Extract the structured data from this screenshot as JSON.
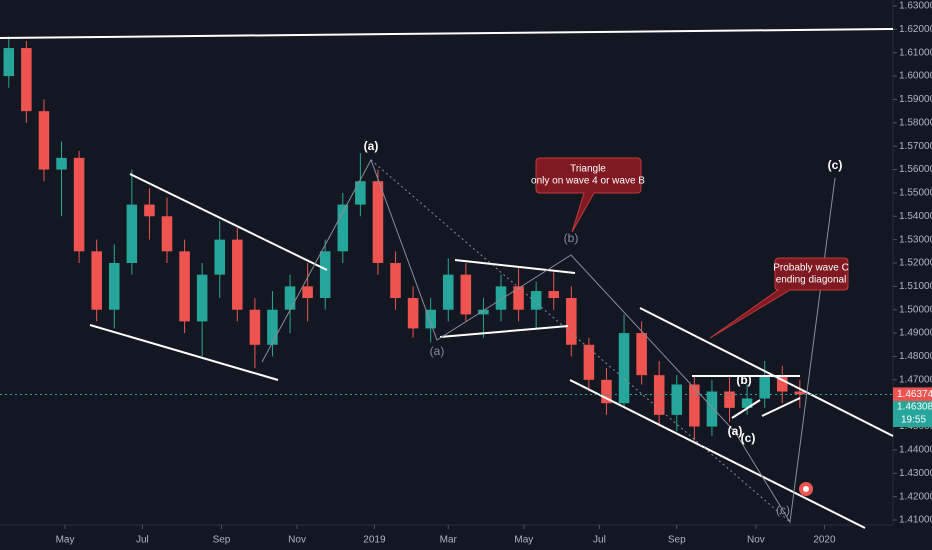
{
  "chart_data": {
    "type": "candlestick",
    "x": [
      0,
      1,
      2,
      3,
      4,
      5,
      6,
      7,
      8,
      9,
      10,
      11,
      12,
      13,
      14,
      15,
      16,
      17,
      18,
      19,
      20,
      21,
      22,
      23,
      24,
      25,
      26,
      27,
      28,
      29,
      30,
      31,
      32,
      33,
      34,
      35,
      36,
      37,
      38,
      39,
      40,
      41,
      42,
      43,
      44,
      45
    ],
    "open": [
      1.6,
      1.612,
      1.585,
      1.56,
      1.565,
      1.525,
      1.5,
      1.52,
      1.545,
      1.54,
      1.525,
      1.495,
      1.515,
      1.53,
      1.5,
      1.485,
      1.5,
      1.51,
      1.505,
      1.525,
      1.545,
      1.555,
      1.52,
      1.505,
      1.492,
      1.5,
      1.515,
      1.498,
      1.5,
      1.51,
      1.5,
      1.508,
      1.505,
      1.485,
      1.47,
      1.46,
      1.49,
      1.472,
      1.455,
      1.468,
      1.45,
      1.465,
      1.458,
      1.462,
      1.472,
      1.465
    ],
    "high": [
      1.617,
      1.615,
      1.59,
      1.572,
      1.568,
      1.53,
      1.528,
      1.56,
      1.552,
      1.548,
      1.53,
      1.52,
      1.538,
      1.535,
      1.505,
      1.508,
      1.515,
      1.52,
      1.53,
      1.55,
      1.567,
      1.56,
      1.525,
      1.51,
      1.505,
      1.522,
      1.52,
      1.505,
      1.515,
      1.518,
      1.512,
      1.516,
      1.51,
      1.488,
      1.475,
      1.498,
      1.495,
      1.478,
      1.472,
      1.472,
      1.47,
      1.472,
      1.468,
      1.478,
      1.476,
      1.47
    ],
    "low": [
      1.595,
      1.58,
      1.555,
      1.54,
      1.52,
      1.495,
      1.492,
      1.515,
      1.53,
      1.52,
      1.49,
      1.48,
      1.505,
      1.495,
      1.475,
      1.48,
      1.49,
      1.495,
      1.5,
      1.52,
      1.54,
      1.515,
      1.5,
      1.488,
      1.486,
      1.495,
      1.495,
      1.488,
      1.495,
      1.495,
      1.492,
      1.5,
      1.48,
      1.465,
      1.455,
      1.458,
      1.468,
      1.45,
      1.448,
      1.444,
      1.446,
      1.452,
      1.455,
      1.458,
      1.46,
      1.458
    ],
    "close": [
      1.612,
      1.585,
      1.56,
      1.565,
      1.525,
      1.5,
      1.52,
      1.545,
      1.54,
      1.525,
      1.495,
      1.515,
      1.53,
      1.5,
      1.485,
      1.5,
      1.51,
      1.505,
      1.525,
      1.545,
      1.555,
      1.52,
      1.505,
      1.492,
      1.5,
      1.515,
      1.498,
      1.5,
      1.51,
      1.5,
      1.508,
      1.505,
      1.485,
      1.47,
      1.46,
      1.49,
      1.472,
      1.455,
      1.468,
      1.45,
      1.465,
      1.458,
      1.462,
      1.472,
      1.465,
      1.46374
    ],
    "up_color": "#26a69a",
    "down_color": "#ef5350",
    "xlim": [
      -0.5,
      50.3
    ],
    "xticks": [
      {
        "value": 3.2,
        "label": "May"
      },
      {
        "value": 7.6,
        "label": "Jul"
      },
      {
        "value": 12.1,
        "label": "Sep"
      },
      {
        "value": 16.4,
        "label": "Nov"
      },
      {
        "value": 20.8,
        "label": "2019"
      },
      {
        "value": 25.0,
        "label": "Mar"
      },
      {
        "value": 29.3,
        "label": "May"
      },
      {
        "value": 33.6,
        "label": "Jul"
      },
      {
        "value": 38.0,
        "label": "Sep"
      },
      {
        "value": 42.5,
        "label": "Nov"
      },
      {
        "value": 46.4,
        "label": "2020"
      }
    ],
    "ylim": [
      1.41,
      1.63
    ],
    "yticks": [
      {
        "value": 1.63,
        "label": "1.63000"
      },
      {
        "value": 1.62,
        "label": "1.62000"
      },
      {
        "value": 1.61,
        "label": "1.61000"
      },
      {
        "value": 1.6,
        "label": "1.60000"
      },
      {
        "value": 1.59,
        "label": "1.59000"
      },
      {
        "value": 1.58,
        "label": "1.58000"
      },
      {
        "value": 1.57,
        "label": "1.57000"
      },
      {
        "value": 1.56,
        "label": "1.56000"
      },
      {
        "value": 1.55,
        "label": "1.55000"
      },
      {
        "value": 1.54,
        "label": "1.54000"
      },
      {
        "value": 1.53,
        "label": "1.53000"
      },
      {
        "value": 1.52,
        "label": "1.52000"
      },
      {
        "value": 1.51,
        "label": "1.51000"
      },
      {
        "value": 1.5,
        "label": "1.50000"
      },
      {
        "value": 1.49,
        "label": "1.49000"
      },
      {
        "value": 1.48,
        "label": "1.48000"
      },
      {
        "value": 1.47,
        "label": "1.47000"
      },
      {
        "value": 1.46,
        "label": "1.46000"
      },
      {
        "value": 1.45,
        "label": "1.45000"
      },
      {
        "value": 1.44,
        "label": "1.44000"
      },
      {
        "value": 1.43,
        "label": "1.43000"
      },
      {
        "value": 1.42,
        "label": "1.42000"
      },
      {
        "value": 1.41,
        "label": "1.41000"
      }
    ],
    "bid_price": 1.46308,
    "countdown": "19:55",
    "annotations": [
      "(a)",
      "(b)",
      "(a)",
      "(c)",
      "(b)",
      "(a)",
      "(c)",
      "(c)"
    ],
    "callouts": [
      [
        "Triangle",
        "only on wave 4 or wave B"
      ],
      [
        "Probably wave C",
        "ending diagonal"
      ]
    ]
  }
}
